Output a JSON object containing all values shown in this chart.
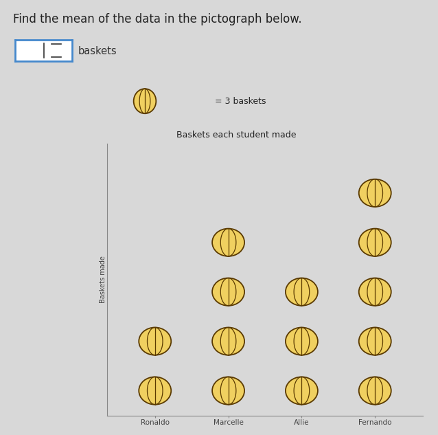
{
  "title": "Find the mean of the data in the pictograph below.",
  "chart_title": "Baskets each student made",
  "ylabel": "Baskets made",
  "legend_text": "= 3 baskets",
  "answer_label": "baskets",
  "students": [
    "Ronaldo",
    "Marcelle",
    "Allie",
    "Fernando"
  ],
  "basket_counts": [
    2,
    4,
    3,
    5
  ],
  "each_equals": 3,
  "bg_color": "#d8d8d8",
  "ball_face_color": "#f0d060",
  "ball_edge_color": "#5a3a00",
  "ball_line_color": "#5a3a00",
  "title_fontsize": 12,
  "chart_title_fontsize": 9,
  "axis_label_fontsize": 7,
  "tick_fontsize": 7.5,
  "box_edge_color": "#4488cc",
  "legend_fontsize": 9
}
